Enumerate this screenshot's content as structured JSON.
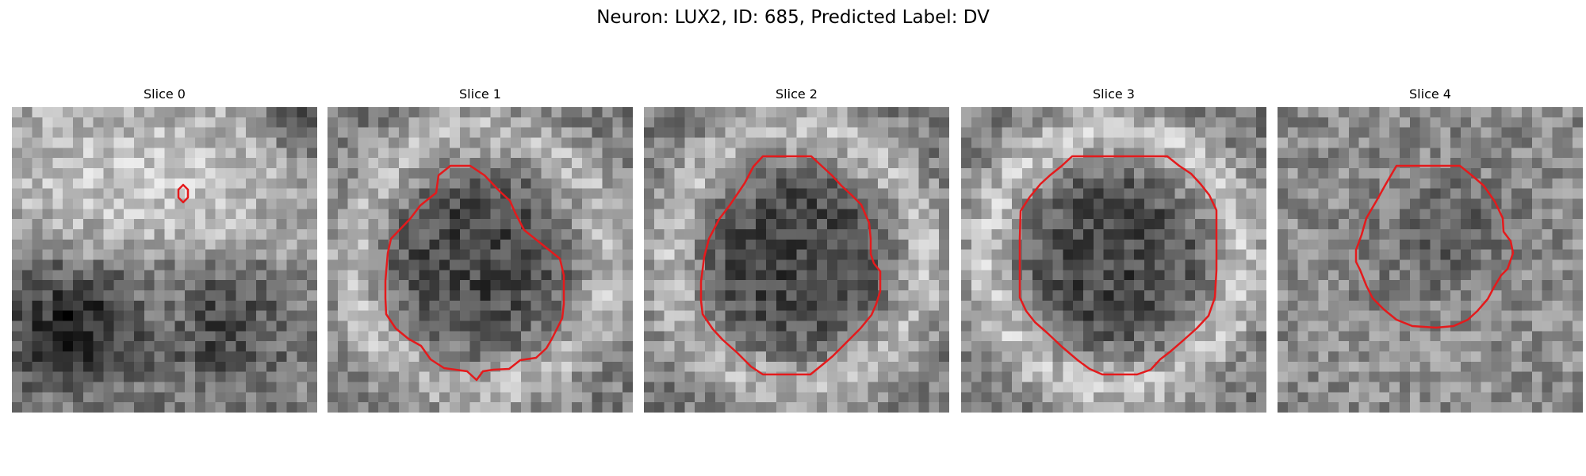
{
  "figure": {
    "title": "Neuron: LUX2, ID: 685, Predicted Label: DV"
  },
  "contour_color": "#e41a1c",
  "panels": [
    {
      "title": "Slice 0"
    },
    {
      "title": "Slice 1"
    },
    {
      "title": "Slice 2"
    },
    {
      "title": "Slice 3"
    },
    {
      "title": "Slice 4"
    }
  ]
}
